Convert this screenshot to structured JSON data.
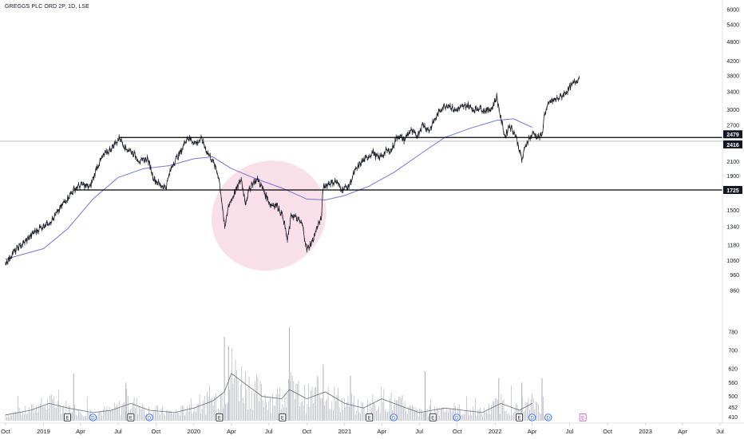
{
  "chart_data": {
    "type": "line",
    "title": "GREGGS PLC ORD 2P, 1D, LSE",
    "price_axis": {
      "scale": "log",
      "range": [
        920,
        6200
      ],
      "ticks": [
        6000,
        5400,
        4800,
        4200,
        3800,
        3400,
        3000,
        2700,
        2100,
        1900,
        1500,
        1340,
        1180,
        1060,
        960,
        860
      ]
    },
    "volume_axis": {
      "range": [
        395,
        860
      ],
      "ticks": [
        780,
        700,
        620,
        560,
        500,
        452,
        410
      ]
    },
    "time_axis": {
      "labels": [
        {
          "label": "Oct",
          "date": "2018-10-01"
        },
        {
          "label": "2019",
          "date": "2019-01-01"
        },
        {
          "label": "Apr",
          "date": "2019-04-01"
        },
        {
          "label": "Jul",
          "date": "2019-07-01"
        },
        {
          "label": "Oct",
          "date": "2019-10-01"
        },
        {
          "label": "2020",
          "date": "2020-01-01"
        },
        {
          "label": "Apr",
          "date": "2020-04-01"
        },
        {
          "label": "Jul",
          "date": "2020-07-01"
        },
        {
          "label": "Oct",
          "date": "2020-10-01"
        },
        {
          "label": "2021",
          "date": "2021-01-01"
        },
        {
          "label": "Apr",
          "date": "2021-04-01"
        },
        {
          "label": "Jul",
          "date": "2021-07-01"
        },
        {
          "label": "Oct",
          "date": "2021-10-01"
        },
        {
          "label": "2022",
          "date": "2022-01-01"
        },
        {
          "label": "Apr",
          "date": "2022-04-01"
        },
        {
          "label": "Jul",
          "date": "2022-07-01"
        },
        {
          "label": "Oct",
          "date": "2022-10-01"
        },
        {
          "label": "2023",
          "date": "2023-01-01"
        },
        {
          "label": "Apr",
          "date": "2023-04-01"
        },
        {
          "label": "Jul",
          "date": "2023-07-01"
        }
      ]
    },
    "series": [
      {
        "kind": "price",
        "color": "#131722",
        "points": [
          [
            "2018-10-01",
            1040
          ],
          [
            "2018-10-20",
            1120
          ],
          [
            "2018-11-15",
            1200
          ],
          [
            "2018-12-10",
            1290
          ],
          [
            "2019-01-05",
            1360
          ],
          [
            "2019-01-25",
            1410
          ],
          [
            "2019-02-10",
            1520
          ],
          [
            "2019-03-01",
            1640
          ],
          [
            "2019-03-20",
            1750
          ],
          [
            "2019-04-05",
            1790
          ],
          [
            "2019-04-25",
            1760
          ],
          [
            "2019-05-10",
            2010
          ],
          [
            "2019-05-25",
            2170
          ],
          [
            "2019-06-15",
            2300
          ],
          [
            "2019-07-05",
            2470
          ],
          [
            "2019-07-20",
            2300
          ],
          [
            "2019-08-05",
            2240
          ],
          [
            "2019-08-25",
            2090
          ],
          [
            "2019-09-10",
            2150
          ],
          [
            "2019-09-25",
            1880
          ],
          [
            "2019-10-10",
            1790
          ],
          [
            "2019-10-25",
            1760
          ],
          [
            "2019-11-10",
            2050
          ],
          [
            "2019-12-01",
            2260
          ],
          [
            "2019-12-15",
            2480
          ],
          [
            "2020-01-05",
            2390
          ],
          [
            "2020-01-20",
            2450
          ],
          [
            "2020-02-01",
            2250
          ],
          [
            "2020-02-15",
            2120
          ],
          [
            "2020-03-01",
            1900
          ],
          [
            "2020-03-16",
            1310
          ],
          [
            "2020-03-25",
            1550
          ],
          [
            "2020-04-10",
            1700
          ],
          [
            "2020-04-25",
            1860
          ],
          [
            "2020-05-05",
            1580
          ],
          [
            "2020-05-20",
            1800
          ],
          [
            "2020-06-05",
            1850
          ],
          [
            "2020-06-20",
            1700
          ],
          [
            "2020-07-05",
            1560
          ],
          [
            "2020-07-20",
            1560
          ],
          [
            "2020-08-05",
            1430
          ],
          [
            "2020-08-15",
            1210
          ],
          [
            "2020-08-25",
            1460
          ],
          [
            "2020-09-05",
            1420
          ],
          [
            "2020-09-20",
            1360
          ],
          [
            "2020-10-01",
            1140
          ],
          [
            "2020-10-15",
            1210
          ],
          [
            "2020-10-28",
            1360
          ],
          [
            "2020-11-05",
            1400
          ],
          [
            "2020-11-10",
            1760
          ],
          [
            "2020-11-25",
            1810
          ],
          [
            "2020-12-10",
            1830
          ],
          [
            "2020-12-25",
            1740
          ],
          [
            "2021-01-10",
            1760
          ],
          [
            "2021-01-25",
            1950
          ],
          [
            "2021-02-10",
            2080
          ],
          [
            "2021-02-25",
            2160
          ],
          [
            "2021-03-10",
            2240
          ],
          [
            "2021-03-25",
            2140
          ],
          [
            "2021-04-10",
            2250
          ],
          [
            "2021-04-25",
            2280
          ],
          [
            "2021-05-10",
            2520
          ],
          [
            "2021-05-25",
            2440
          ],
          [
            "2021-06-10",
            2600
          ],
          [
            "2021-06-25",
            2500
          ],
          [
            "2021-07-10",
            2720
          ],
          [
            "2021-07-25",
            2600
          ],
          [
            "2021-08-10",
            2840
          ],
          [
            "2021-08-25",
            3050
          ],
          [
            "2021-09-10",
            3120
          ],
          [
            "2021-09-25",
            2980
          ],
          [
            "2021-10-10",
            3040
          ],
          [
            "2021-10-25",
            3100
          ],
          [
            "2021-11-10",
            3000
          ],
          [
            "2021-11-25",
            3050
          ],
          [
            "2021-12-10",
            2980
          ],
          [
            "2021-12-25",
            3040
          ],
          [
            "2022-01-05",
            3280
          ],
          [
            "2022-01-15",
            2830
          ],
          [
            "2022-01-25",
            2490
          ],
          [
            "2022-02-05",
            2700
          ],
          [
            "2022-02-20",
            2520
          ],
          [
            "2022-03-07",
            2120
          ],
          [
            "2022-03-20",
            2420
          ],
          [
            "2022-04-05",
            2560
          ],
          [
            "2022-04-15",
            2480
          ],
          [
            "2022-04-25",
            2510
          ],
          [
            "2022-05-01",
            2920
          ],
          [
            "2022-05-15",
            3180
          ],
          [
            "2022-05-30",
            3230
          ],
          [
            "2022-06-15",
            3320
          ],
          [
            "2022-06-30",
            3480
          ],
          [
            "2022-07-15",
            3650
          ],
          [
            "2022-07-25",
            3760
          ]
        ]
      },
      {
        "kind": "moving-average",
        "color": "#5b5fd6",
        "points": [
          [
            "2018-10-01",
            1070
          ],
          [
            "2019-01-01",
            1150
          ],
          [
            "2019-03-01",
            1320
          ],
          [
            "2019-05-01",
            1620
          ],
          [
            "2019-07-01",
            1880
          ],
          [
            "2019-09-01",
            2000
          ],
          [
            "2019-11-01",
            2040
          ],
          [
            "2020-01-01",
            2140
          ],
          [
            "2020-02-15",
            2170
          ],
          [
            "2020-04-01",
            2000
          ],
          [
            "2020-06-01",
            1860
          ],
          [
            "2020-08-01",
            1750
          ],
          [
            "2020-10-01",
            1620
          ],
          [
            "2020-11-15",
            1610
          ],
          [
            "2021-01-01",
            1660
          ],
          [
            "2021-03-01",
            1770
          ],
          [
            "2021-05-01",
            1950
          ],
          [
            "2021-07-01",
            2200
          ],
          [
            "2021-09-01",
            2480
          ],
          [
            "2021-11-01",
            2640
          ],
          [
            "2022-01-05",
            2790
          ],
          [
            "2022-02-15",
            2820
          ],
          [
            "2022-04-01",
            2660
          ]
        ]
      }
    ],
    "levels": [
      {
        "value": 2479,
        "label": "2479",
        "from": "2019-07-05"
      },
      {
        "value": 2416,
        "label": "2416",
        "from": "2018-09-01",
        "thin": true
      },
      {
        "value": 1725,
        "label": "1725",
        "from": "2019-03-15"
      }
    ],
    "highlight": {
      "from": "2020-03-01",
      "to": "2020-10-31",
      "low": 1110,
      "high": 1880,
      "color": "#f7d6e0"
    },
    "volume": {
      "average": [
        [
          "2018-10-01",
          420
        ],
        [
          "2018-12-01",
          440
        ],
        [
          "2019-01-15",
          470
        ],
        [
          "2019-03-01",
          450
        ],
        [
          "2019-05-01",
          430
        ],
        [
          "2019-06-15",
          440
        ],
        [
          "2019-08-01",
          470
        ],
        [
          "2019-09-15",
          440
        ],
        [
          "2019-11-15",
          430
        ],
        [
          "2020-01-01",
          450
        ],
        [
          "2020-02-15",
          480
        ],
        [
          "2020-03-15",
          520
        ],
        [
          "2020-04-01",
          600
        ],
        [
          "2020-05-01",
          560
        ],
        [
          "2020-06-15",
          500
        ],
        [
          "2020-08-01",
          490
        ],
        [
          "2020-08-20",
          530
        ],
        [
          "2020-10-01",
          490
        ],
        [
          "2020-11-15",
          520
        ],
        [
          "2021-01-01",
          470
        ],
        [
          "2021-02-15",
          450
        ],
        [
          "2021-04-01",
          490
        ],
        [
          "2021-05-15",
          460
        ],
        [
          "2021-07-01",
          430
        ],
        [
          "2021-09-01",
          450
        ],
        [
          "2021-10-15",
          440
        ],
        [
          "2021-12-01",
          430
        ],
        [
          "2022-01-15",
          470
        ],
        [
          "2022-03-01",
          440
        ],
        [
          "2022-04-01",
          470
        ]
      ],
      "spikes": [
        [
          "2019-03-15",
          600
        ],
        [
          "2019-07-20",
          560
        ],
        [
          "2020-03-15",
          760
        ],
        [
          "2020-03-25",
          720
        ],
        [
          "2020-08-20",
          800
        ],
        [
          "2020-11-10",
          640
        ],
        [
          "2021-01-15",
          590
        ],
        [
          "2021-07-15",
          610
        ],
        [
          "2022-01-10",
          580
        ],
        [
          "2022-03-07",
          560
        ],
        [
          "2022-04-25",
          580
        ]
      ],
      "ticks": [
        400,
        410,
        420,
        430,
        440,
        450,
        460,
        470,
        480,
        490,
        500,
        510,
        520,
        530
      ]
    },
    "event_markers": [
      {
        "date": "2019-02-28",
        "label": "E",
        "kind": "earnings"
      },
      {
        "date": "2019-05-01",
        "label": "D",
        "kind": "dividend"
      },
      {
        "date": "2019-08-01",
        "label": "E",
        "kind": "earnings"
      },
      {
        "date": "2019-09-15",
        "label": "D",
        "kind": "dividend"
      },
      {
        "date": "2020-03-03",
        "label": "E",
        "kind": "earnings"
      },
      {
        "date": "2020-08-03",
        "label": "E",
        "kind": "earnings"
      },
      {
        "date": "2021-03-02",
        "label": "E",
        "kind": "earnings"
      },
      {
        "date": "2021-04-30",
        "label": "D",
        "kind": "dividend"
      },
      {
        "date": "2021-08-03",
        "label": "E",
        "kind": "earnings"
      },
      {
        "date": "2021-09-30",
        "label": "D",
        "kind": "dividend"
      },
      {
        "date": "2022-03-01",
        "label": "E",
        "kind": "earnings"
      },
      {
        "date": "2022-04-01",
        "label": "D",
        "kind": "dividend"
      },
      {
        "date": "2022-05-10",
        "label": "D",
        "kind": "dividend"
      },
      {
        "date": "2022-08-02",
        "label": "E",
        "kind": "earnings-upcoming"
      }
    ],
    "colors": {
      "price": "#131722",
      "ma": "#5b5fd6",
      "levels": "#000000",
      "highlight": "#f7d6e0",
      "volume": "#b2b5be",
      "dividend": "#2962ff",
      "earnings_upcoming": "#c64fb8"
    }
  }
}
